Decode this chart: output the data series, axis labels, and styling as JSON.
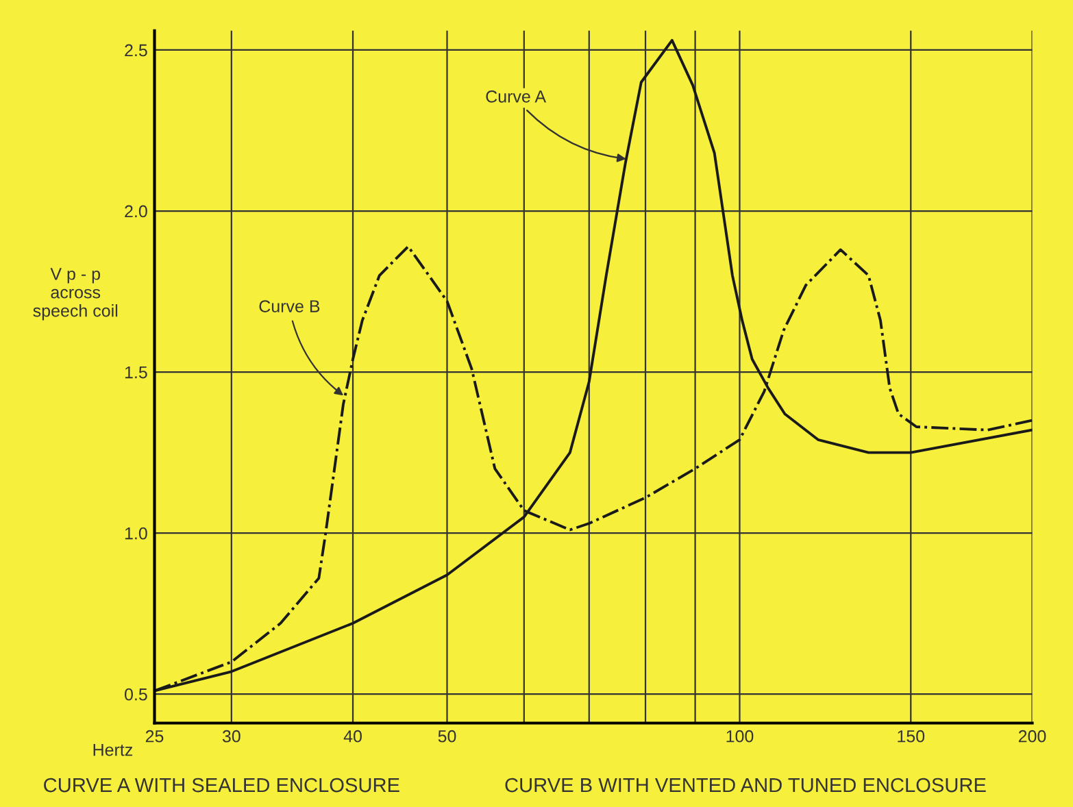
{
  "chart_data": {
    "type": "line",
    "xlabel": "Hertz",
    "ylabel": "V p - p\nacross\nspeech coil",
    "log": "x",
    "xlim": [
      25,
      200
    ],
    "xticks": [
      25,
      30,
      40,
      50,
      {
        "value": 60,
        "label": null
      },
      {
        "value": 70,
        "label": null
      },
      {
        "value": 80,
        "label": null
      },
      {
        "value": 90,
        "label": null
      },
      100,
      150,
      200
    ],
    "ylim": [
      0.41,
      2.56
    ],
    "yticks": [
      0.5,
      {
        "value": 1,
        "label": "1.0"
      },
      1.5,
      {
        "value": 2,
        "label": "2.0"
      },
      2.5
    ],
    "grid": true,
    "series": [
      {
        "color": "#1a1a1a",
        "line_style": "solid",
        "x": [
          25,
          30,
          40,
          50,
          60,
          66.9,
          70,
          72.9,
          76.3,
          77.1,
          79.2,
          85.2,
          89.5,
          94.2,
          98.3,
          100.6,
          103,
          107,
          111.3,
          120.4,
          135.7,
          145.7,
          150,
          200
        ],
        "values": [
          0.51,
          0.57,
          0.72,
          0.87,
          1.05,
          1.25,
          1.47,
          1.8,
          2.15,
          2.22,
          2.4,
          2.53,
          2.39,
          2.18,
          1.8,
          1.66,
          1.54,
          1.45,
          1.37,
          1.29,
          1.25,
          1.25,
          1.25,
          1.32
        ]
      },
      {
        "color": "#1a1a1a",
        "line_style": "dashdot",
        "x": [
          25,
          30,
          33.7,
          36.9,
          37.5,
          39.1,
          40,
          40.9,
          42.6,
          45.6,
          50,
          53,
          56,
          60,
          66.9,
          70,
          80,
          90,
          100,
          106,
          111,
          117,
          127,
          135.7,
          139.6,
          142.7,
          145.7,
          152,
          180,
          200
        ],
        "values": [
          0.51,
          0.6,
          0.72,
          0.86,
          1.0,
          1.4,
          1.54,
          1.66,
          1.8,
          1.89,
          1.72,
          1.51,
          1.2,
          1.07,
          1.01,
          1.03,
          1.11,
          1.2,
          1.29,
          1.44,
          1.63,
          1.77,
          1.88,
          1.8,
          1.66,
          1.45,
          1.37,
          1.33,
          1.32,
          1.35
        ]
      }
    ],
    "annotations": [
      {
        "text": "Curve A",
        "x": 77.1,
        "y": 2.16
      },
      {
        "text": "Curve B",
        "x": 39.4,
        "y": 1.42
      },
      "CURVE A WITH SEALED ENCLOSURE",
      "CURVE B WITH VENTED AND TUNED ENCLOSURE"
    ]
  }
}
